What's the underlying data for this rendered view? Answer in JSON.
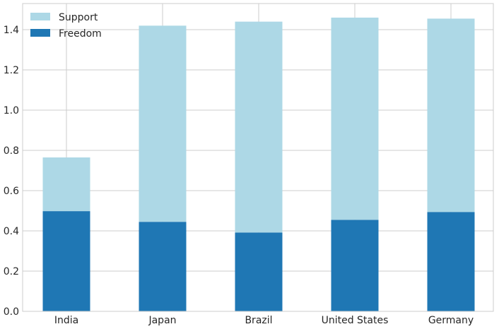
{
  "chart_data": {
    "type": "bar",
    "stacked": true,
    "categories": [
      "India",
      "Japan",
      "Brazil",
      "United States",
      "Germany"
    ],
    "series": [
      {
        "name": "Freedom",
        "color": "#1f77b4",
        "values": [
          0.498,
          0.445,
          0.392,
          0.455,
          0.494
        ]
      },
      {
        "name": "Support",
        "color": "#add8e6",
        "values": [
          0.267,
          0.975,
          1.048,
          1.005,
          0.961
        ]
      }
    ],
    "legend": {
      "placement": "top-left",
      "entries": [
        {
          "label": "Support",
          "color": "#add8e6"
        },
        {
          "label": "Freedom",
          "color": "#1f77b4"
        }
      ]
    },
    "ylim": [
      0,
      1.53
    ],
    "yticks": [
      "0.0",
      "0.2",
      "0.4",
      "0.6",
      "0.8",
      "1.0",
      "1.2",
      "1.4"
    ],
    "grid": true,
    "title": "",
    "xlabel": "",
    "ylabel": ""
  }
}
